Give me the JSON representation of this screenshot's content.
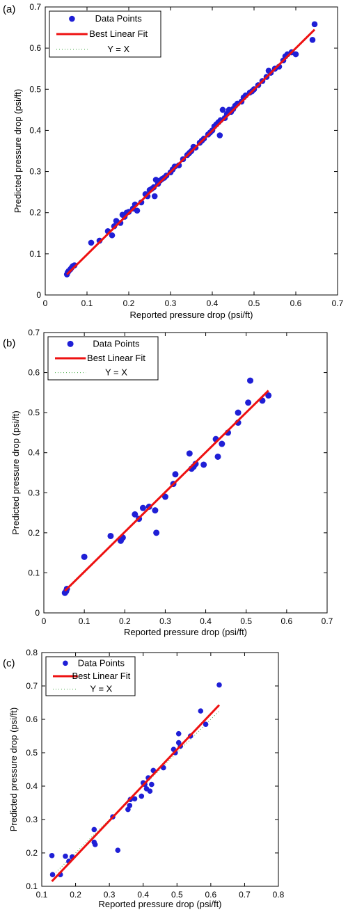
{
  "chart_data": [
    {
      "type": "scatter",
      "panel_label": "(a)",
      "xlabel": "Reported pressure drop (psi/ft)",
      "ylabel": "Predicted pressure drop (psi/ft)",
      "xlim": [
        0,
        0.7
      ],
      "ylim": [
        0,
        0.7
      ],
      "xticks": [
        "0",
        "0.1",
        "0.2",
        "0.3",
        "0.4",
        "0.5",
        "0.6",
        "0.7"
      ],
      "yticks": [
        "0",
        "0.1",
        "0.2",
        "0.3",
        "0.4",
        "0.5",
        "0.6",
        "0.7"
      ],
      "grid": false,
      "legend_position": "top-left",
      "series": [
        {
          "name": "Data Points",
          "kind": "points",
          "color": "#1f1fd6",
          "points": [
            [
              0.052,
              0.05
            ],
            [
              0.054,
              0.055
            ],
            [
              0.056,
              0.058
            ],
            [
              0.06,
              0.062
            ],
            [
              0.063,
              0.066
            ],
            [
              0.066,
              0.07
            ],
            [
              0.07,
              0.072
            ],
            [
              0.11,
              0.127
            ],
            [
              0.13,
              0.132
            ],
            [
              0.15,
              0.155
            ],
            [
              0.16,
              0.145
            ],
            [
              0.165,
              0.167
            ],
            [
              0.17,
              0.18
            ],
            [
              0.18,
              0.175
            ],
            [
              0.185,
              0.195
            ],
            [
              0.19,
              0.19
            ],
            [
              0.195,
              0.2
            ],
            [
              0.2,
              0.202
            ],
            [
              0.21,
              0.21
            ],
            [
              0.215,
              0.22
            ],
            [
              0.22,
              0.205
            ],
            [
              0.23,
              0.225
            ],
            [
              0.24,
              0.245
            ],
            [
              0.245,
              0.24
            ],
            [
              0.25,
              0.255
            ],
            [
              0.255,
              0.258
            ],
            [
              0.26,
              0.262
            ],
            [
              0.262,
              0.24
            ],
            [
              0.265,
              0.28
            ],
            [
              0.27,
              0.27
            ],
            [
              0.275,
              0.278
            ],
            [
              0.28,
              0.282
            ],
            [
              0.285,
              0.285
            ],
            [
              0.29,
              0.29
            ],
            [
              0.3,
              0.298
            ],
            [
              0.305,
              0.305
            ],
            [
              0.31,
              0.312
            ],
            [
              0.32,
              0.315
            ],
            [
              0.33,
              0.33
            ],
            [
              0.34,
              0.34
            ],
            [
              0.345,
              0.345
            ],
            [
              0.35,
              0.35
            ],
            [
              0.355,
              0.36
            ],
            [
              0.36,
              0.358
            ],
            [
              0.37,
              0.37
            ],
            [
              0.375,
              0.375
            ],
            [
              0.38,
              0.38
            ],
            [
              0.39,
              0.39
            ],
            [
              0.395,
              0.395
            ],
            [
              0.4,
              0.4
            ],
            [
              0.405,
              0.41
            ],
            [
              0.41,
              0.415
            ],
            [
              0.415,
              0.42
            ],
            [
              0.418,
              0.388
            ],
            [
              0.42,
              0.425
            ],
            [
              0.425,
              0.45
            ],
            [
              0.43,
              0.43
            ],
            [
              0.435,
              0.44
            ],
            [
              0.44,
              0.45
            ],
            [
              0.445,
              0.445
            ],
            [
              0.45,
              0.452
            ],
            [
              0.455,
              0.46
            ],
            [
              0.46,
              0.465
            ],
            [
              0.47,
              0.47
            ],
            [
              0.475,
              0.48
            ],
            [
              0.48,
              0.485
            ],
            [
              0.49,
              0.492
            ],
            [
              0.495,
              0.495
            ],
            [
              0.5,
              0.5
            ],
            [
              0.51,
              0.51
            ],
            [
              0.52,
              0.52
            ],
            [
              0.53,
              0.53
            ],
            [
              0.535,
              0.545
            ],
            [
              0.54,
              0.54
            ],
            [
              0.55,
              0.55
            ],
            [
              0.56,
              0.555
            ],
            [
              0.57,
              0.57
            ],
            [
              0.575,
              0.58
            ],
            [
              0.58,
              0.585
            ],
            [
              0.59,
              0.59
            ],
            [
              0.6,
              0.585
            ],
            [
              0.64,
              0.62
            ],
            [
              0.645,
              0.658
            ]
          ]
        },
        {
          "name": "Best Linear Fit",
          "kind": "line",
          "color": "#ee1111",
          "points": [
            [
              0.052,
              0.05
            ],
            [
              0.645,
              0.645
            ]
          ]
        },
        {
          "name": "Y = X",
          "kind": "dotted",
          "color": "#44aa44",
          "points": [
            [
              0.052,
              0.052
            ],
            [
              0.645,
              0.645
            ]
          ]
        }
      ]
    },
    {
      "type": "scatter",
      "panel_label": "(b)",
      "xlabel": "Reported pressure drop (psi/ft)",
      "ylabel": "Predicted pressure drop (psi/ft)",
      "xlim": [
        0,
        0.7
      ],
      "ylim": [
        0,
        0.7
      ],
      "xticks": [
        "0",
        "0.1",
        "0.2",
        "0.3",
        "0.4",
        "0.5",
        "0.6",
        "0.7"
      ],
      "yticks": [
        "0",
        "0.1",
        "0.2",
        "0.3",
        "0.4",
        "0.5",
        "0.6",
        "0.7"
      ],
      "grid": false,
      "legend_position": "top-left",
      "series": [
        {
          "name": "Data Points",
          "kind": "points",
          "color": "#1f1fd6",
          "points": [
            [
              0.052,
              0.05
            ],
            [
              0.055,
              0.054
            ],
            [
              0.057,
              0.06
            ],
            [
              0.1,
              0.14
            ],
            [
              0.165,
              0.192
            ],
            [
              0.19,
              0.18
            ],
            [
              0.195,
              0.188
            ],
            [
              0.225,
              0.246
            ],
            [
              0.235,
              0.235
            ],
            [
              0.245,
              0.262
            ],
            [
              0.26,
              0.265
            ],
            [
              0.275,
              0.256
            ],
            [
              0.278,
              0.2
            ],
            [
              0.3,
              0.29
            ],
            [
              0.32,
              0.322
            ],
            [
              0.325,
              0.346
            ],
            [
              0.36,
              0.398
            ],
            [
              0.365,
              0.36
            ],
            [
              0.37,
              0.365
            ],
            [
              0.375,
              0.372
            ],
            [
              0.395,
              0.37
            ],
            [
              0.425,
              0.434
            ],
            [
              0.43,
              0.39
            ],
            [
              0.44,
              0.422
            ],
            [
              0.455,
              0.45
            ],
            [
              0.48,
              0.475
            ],
            [
              0.48,
              0.5
            ],
            [
              0.505,
              0.525
            ],
            [
              0.51,
              0.58
            ],
            [
              0.54,
              0.53
            ],
            [
              0.555,
              0.543
            ]
          ]
        },
        {
          "name": "Best Linear Fit",
          "kind": "line",
          "color": "#ee1111",
          "points": [
            [
              0.052,
              0.055
            ],
            [
              0.555,
              0.555
            ]
          ]
        },
        {
          "name": "Y = X",
          "kind": "dotted",
          "color": "#44aa44",
          "points": [
            [
              0.052,
              0.052
            ],
            [
              0.555,
              0.555
            ]
          ]
        }
      ]
    },
    {
      "type": "scatter",
      "panel_label": "(c)",
      "xlabel": "Reported pressure drop (psi/ft)",
      "ylabel": "Predicted pressure drop (psi/ft)",
      "xlim": [
        0.1,
        0.8
      ],
      "ylim": [
        0.1,
        0.8
      ],
      "xticks": [
        "0.1",
        "0.2",
        "0.3",
        "0.4",
        "0.5",
        "0.6",
        "0.7",
        "0.8"
      ],
      "yticks": [
        "0.1",
        "0.2",
        "0.3",
        "0.4",
        "0.5",
        "0.6",
        "0.7",
        "0.8"
      ],
      "grid": false,
      "legend_position": "top-left",
      "series": [
        {
          "name": "Data Points",
          "kind": "points",
          "color": "#1f1fd6",
          "points": [
            [
              0.13,
              0.192
            ],
            [
              0.132,
              0.135
            ],
            [
              0.155,
              0.135
            ],
            [
              0.17,
              0.19
            ],
            [
              0.18,
              0.175
            ],
            [
              0.19,
              0.188
            ],
            [
              0.255,
              0.27
            ],
            [
              0.255,
              0.232
            ],
            [
              0.258,
              0.225
            ],
            [
              0.31,
              0.308
            ],
            [
              0.325,
              0.208
            ],
            [
              0.355,
              0.33
            ],
            [
              0.36,
              0.342
            ],
            [
              0.362,
              0.36
            ],
            [
              0.375,
              0.362
            ],
            [
              0.395,
              0.37
            ],
            [
              0.4,
              0.41
            ],
            [
              0.405,
              0.405
            ],
            [
              0.41,
              0.392
            ],
            [
              0.415,
              0.425
            ],
            [
              0.42,
              0.385
            ],
            [
              0.425,
              0.405
            ],
            [
              0.43,
              0.447
            ],
            [
              0.46,
              0.455
            ],
            [
              0.49,
              0.51
            ],
            [
              0.495,
              0.5
            ],
            [
              0.505,
              0.53
            ],
            [
              0.505,
              0.557
            ],
            [
              0.51,
              0.52
            ],
            [
              0.54,
              0.55
            ],
            [
              0.57,
              0.625
            ],
            [
              0.585,
              0.585
            ],
            [
              0.625,
              0.703
            ]
          ]
        },
        {
          "name": "Best Linear Fit",
          "kind": "line",
          "color": "#ee1111",
          "points": [
            [
              0.13,
              0.115
            ],
            [
              0.625,
              0.643
            ]
          ]
        },
        {
          "name": "Y = X",
          "kind": "dotted",
          "color": "#44aa44",
          "points": [
            [
              0.13,
              0.13
            ],
            [
              0.625,
              0.625
            ]
          ]
        }
      ]
    }
  ]
}
